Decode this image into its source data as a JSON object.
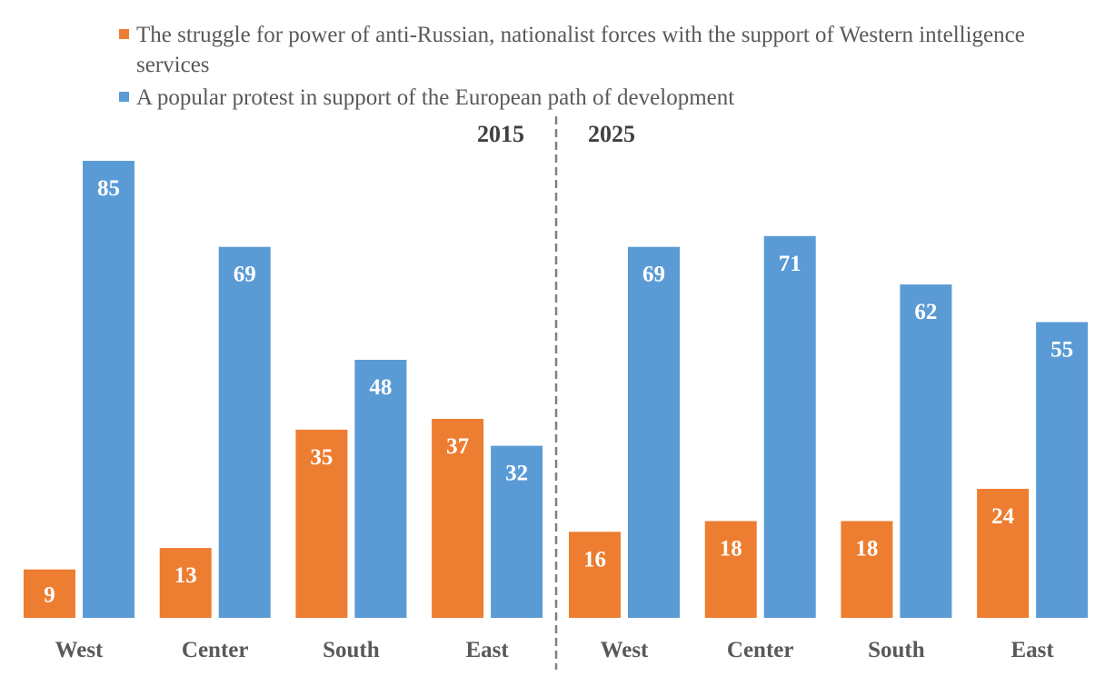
{
  "chart_data": {
    "type": "bar",
    "title": "",
    "xlabel": "",
    "ylabel": "",
    "ylim": [
      0,
      85
    ],
    "grid": false,
    "legend_position": "top",
    "colors": {
      "series_1": "#ED7D31",
      "series_2": "#5B9BD5",
      "divider": "#808080",
      "category_text": "#595959",
      "year_text": "#404040"
    },
    "legend": [
      "The struggle for power of anti-Russian, nationalist forces with the support of Western intelligence services",
      "A popular protest in support of the European path of development"
    ],
    "panels": [
      {
        "year": "2015",
        "categories": [
          "West",
          "Center",
          "South",
          "East"
        ],
        "series": [
          {
            "name": "The struggle for power of anti-Russian, nationalist forces with the support of Western intelligence services",
            "values": [
              9,
              13,
              35,
              37
            ]
          },
          {
            "name": "A popular protest in support of the European path of development",
            "values": [
              85,
              69,
              48,
              32
            ]
          }
        ]
      },
      {
        "year": "2025",
        "categories": [
          "West",
          "Center",
          "South",
          "East"
        ],
        "series": [
          {
            "name": "The struggle for power of anti-Russian, nationalist forces with the support of Western intelligence services",
            "values": [
              16,
              18,
              18,
              24
            ]
          },
          {
            "name": "A popular protest in support of the European path of development",
            "values": [
              69,
              71,
              62,
              55
            ]
          }
        ]
      }
    ]
  }
}
